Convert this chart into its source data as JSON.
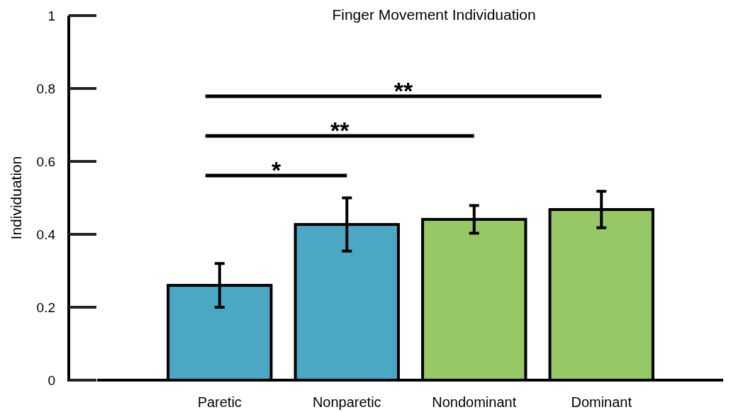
{
  "chart_data": {
    "type": "bar",
    "title": "Finger Movement Individuation",
    "ylabel": "Individuation",
    "categories": [
      "Paretic",
      "Nonparetic",
      "Nondominant",
      "Dominant"
    ],
    "values": [
      0.26,
      0.427,
      0.441,
      0.468
    ],
    "colors": [
      "#4aa8c4",
      "#4aa8c4",
      "#96c866",
      "#96c866"
    ],
    "errors": [
      0.06,
      0.073,
      0.038,
      0.05
    ],
    "ylim": [
      0,
      1
    ],
    "yticks": [
      0,
      0.2,
      0.4,
      0.6,
      0.8,
      1
    ],
    "grid": false,
    "annotations": [
      "*",
      "**",
      "**"
    ]
  }
}
